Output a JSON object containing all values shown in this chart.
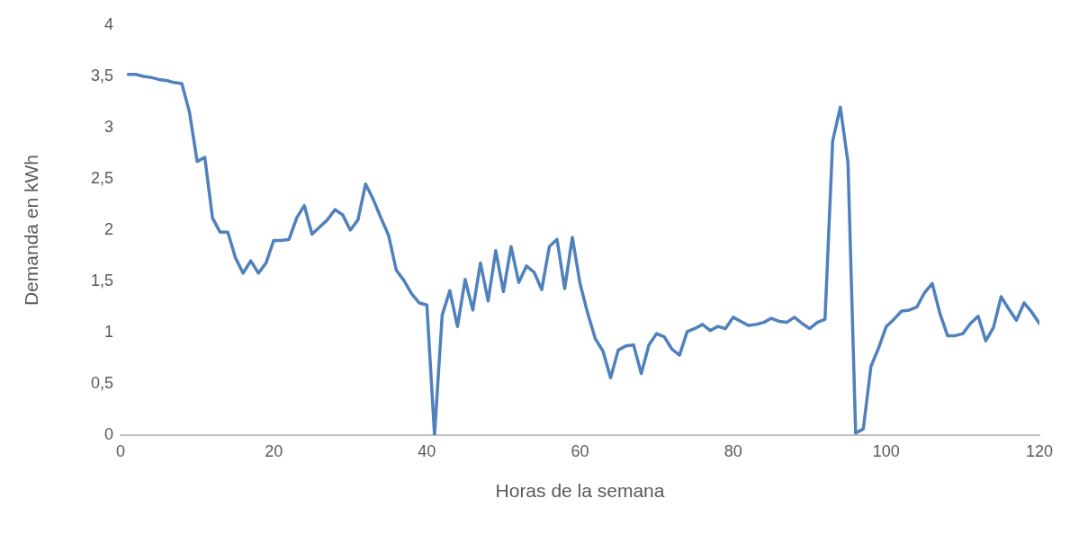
{
  "chart_data": {
    "type": "line",
    "xlabel": "Horas de la semana",
    "ylabel": "Demanda en kWh",
    "x": [
      1,
      2,
      3,
      4,
      5,
      6,
      7,
      8,
      9,
      10,
      11,
      12,
      13,
      14,
      15,
      16,
      17,
      18,
      19,
      20,
      21,
      22,
      23,
      24,
      25,
      26,
      27,
      28,
      29,
      30,
      31,
      32,
      33,
      34,
      35,
      36,
      37,
      38,
      39,
      40,
      41,
      42,
      43,
      44,
      45,
      46,
      47,
      48,
      49,
      50,
      51,
      52,
      53,
      54,
      55,
      56,
      57,
      58,
      59,
      60,
      61,
      62,
      63,
      64,
      65,
      66,
      67,
      68,
      69,
      70,
      71,
      72,
      73,
      74,
      75,
      76,
      77,
      78,
      79,
      80,
      81,
      82,
      83,
      84,
      85,
      86,
      87,
      88,
      89,
      90,
      91,
      92,
      93,
      94,
      95,
      96,
      97,
      98,
      99,
      100,
      101,
      102,
      103,
      104,
      105,
      106,
      107,
      108,
      109,
      110,
      111,
      112,
      113,
      114,
      115,
      116,
      117,
      118,
      119,
      120
    ],
    "series": [
      {
        "color": "#4f81bd",
        "values": [
          3.52,
          3.52,
          3.5,
          3.49,
          3.47,
          3.46,
          3.44,
          3.43,
          3.15,
          2.67,
          2.71,
          2.12,
          1.98,
          1.98,
          1.73,
          1.58,
          1.7,
          1.58,
          1.68,
          1.9,
          1.9,
          1.91,
          2.12,
          2.24,
          1.96,
          2.03,
          2.1,
          2.2,
          2.15,
          2.0,
          2.1,
          2.45,
          2.3,
          2.12,
          1.95,
          1.61,
          1.51,
          1.38,
          1.29,
          1.27,
          0,
          1.17,
          1.41,
          1.06,
          1.52,
          1.22,
          1.68,
          1.31,
          1.8,
          1.4,
          1.84,
          1.49,
          1.65,
          1.59,
          1.42,
          1.84,
          1.91,
          1.43,
          1.93,
          1.48,
          1.19,
          0.94,
          0.82,
          0.56,
          0.83,
          0.87,
          0.88,
          0.6,
          0.88,
          0.99,
          0.96,
          0.84,
          0.78,
          1.01,
          1.04,
          1.08,
          1.02,
          1.06,
          1.04,
          1.15,
          1.11,
          1.07,
          1.08,
          1.1,
          1.14,
          1.11,
          1.1,
          1.15,
          1.09,
          1.04,
          1.1,
          1.13,
          2.87,
          3.2,
          2.66,
          0.02,
          0.06,
          0.67,
          0.85,
          1.06,
          1.13,
          1.21,
          1.22,
          1.25,
          1.39,
          1.48,
          1.19,
          0.97,
          0.97,
          0.99,
          1.09,
          1.16,
          0.92,
          1.05,
          1.35,
          1.23,
          1.12,
          1.29,
          1.2,
          1.09
        ]
      }
    ],
    "xlim": [
      0,
      120
    ],
    "xticks": [
      0,
      20,
      40,
      60,
      80,
      100,
      120
    ],
    "ylim": [
      0,
      4
    ],
    "yticks": [
      0,
      {
        "value": 0.5,
        "label": "0,5"
      },
      1,
      {
        "value": 1.5,
        "label": "1,5"
      },
      2,
      {
        "value": 2.5,
        "label": "2,5"
      },
      3,
      {
        "value": 3.5,
        "label": "3,5"
      },
      4
    ],
    "grid": false,
    "legend": false,
    "marker": "none",
    "line_style": "solid"
  }
}
